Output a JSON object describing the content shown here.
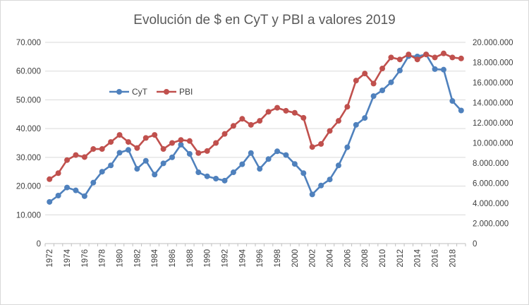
{
  "chart_data": {
    "type": "line",
    "title": "Evolución de $ en CyT y PBI a valores 2019",
    "xlabel": "",
    "ylabel": "",
    "y2label": "",
    "x": [
      1972,
      1973,
      1974,
      1975,
      1976,
      1977,
      1978,
      1979,
      1980,
      1981,
      1982,
      1983,
      1984,
      1985,
      1986,
      1987,
      1988,
      1989,
      1990,
      1991,
      1992,
      1993,
      1994,
      1995,
      1996,
      1997,
      1998,
      1999,
      2000,
      2001,
      2002,
      2003,
      2004,
      2005,
      2006,
      2007,
      2008,
      2009,
      2010,
      2011,
      2012,
      2013,
      2014,
      2015,
      2016,
      2017,
      2018,
      2019
    ],
    "x_tick_labels": [
      "1972",
      "1974",
      "1976",
      "1978",
      "1980",
      "1982",
      "1984",
      "1986",
      "1988",
      "1990",
      "1992",
      "1994",
      "1996",
      "1998",
      "2000",
      "2002",
      "2004",
      "2006",
      "2008",
      "2010",
      "2012",
      "2014",
      "2016",
      "2018"
    ],
    "ylim": [
      0,
      70000
    ],
    "y_ticks": [
      0,
      10000,
      20000,
      30000,
      40000,
      50000,
      60000,
      70000
    ],
    "y_tick_labels": [
      "0",
      "10.000",
      "20.000",
      "30.000",
      "40.000",
      "50.000",
      "60.000",
      "70.000"
    ],
    "y2lim": [
      0,
      20000000
    ],
    "y2_ticks": [
      0,
      2000000,
      4000000,
      6000000,
      8000000,
      10000000,
      12000000,
      14000000,
      16000000,
      18000000,
      20000000
    ],
    "y2_tick_labels": [
      "0",
      "2.000.000",
      "4.000.000",
      "6.000.000",
      "8.000.000",
      "10.000.000",
      "12.000.000",
      "14.000.000",
      "16.000.000",
      "18.000.000",
      "20.000.000"
    ],
    "grid": true,
    "legend_position": "top-left",
    "series": [
      {
        "name": "CyT",
        "axis": "left",
        "color": "#4F81BD",
        "values": [
          14500,
          16700,
          19500,
          18500,
          16500,
          21200,
          25000,
          27200,
          31600,
          32600,
          26000,
          28800,
          24000,
          27900,
          30000,
          34400,
          31200,
          24800,
          23400,
          22600,
          21900,
          24800,
          27600,
          31500,
          26000,
          29400,
          32100,
          30800,
          27700,
          24500,
          17100,
          20200,
          22300,
          27200,
          33500,
          41300,
          43700,
          51300,
          53300,
          56100,
          60200,
          65200,
          65100,
          65800,
          60700,
          60500,
          49600,
          46300
        ]
      },
      {
        "name": "PBI",
        "axis": "right",
        "color": "#C0504D",
        "values": [
          6400000,
          7000000,
          8300000,
          8800000,
          8600000,
          9400000,
          9400000,
          10100000,
          10800000,
          10100000,
          9500000,
          10500000,
          10800000,
          9400000,
          10000000,
          10300000,
          10200000,
          9000000,
          9200000,
          10000000,
          10900000,
          11700000,
          12400000,
          11800000,
          12200000,
          13100000,
          13500000,
          13200000,
          13000000,
          12500000,
          9600000,
          9900000,
          11200000,
          12200000,
          13600000,
          16200000,
          16900000,
          15900000,
          17400000,
          18500000,
          18300000,
          18800000,
          18300000,
          18800000,
          18500000,
          18900000,
          18500000,
          18400000
        ]
      }
    ]
  },
  "colors": {
    "gridline": "#D9D9D9",
    "axis": "#BFBFBF",
    "border": "#D9D9D9"
  }
}
